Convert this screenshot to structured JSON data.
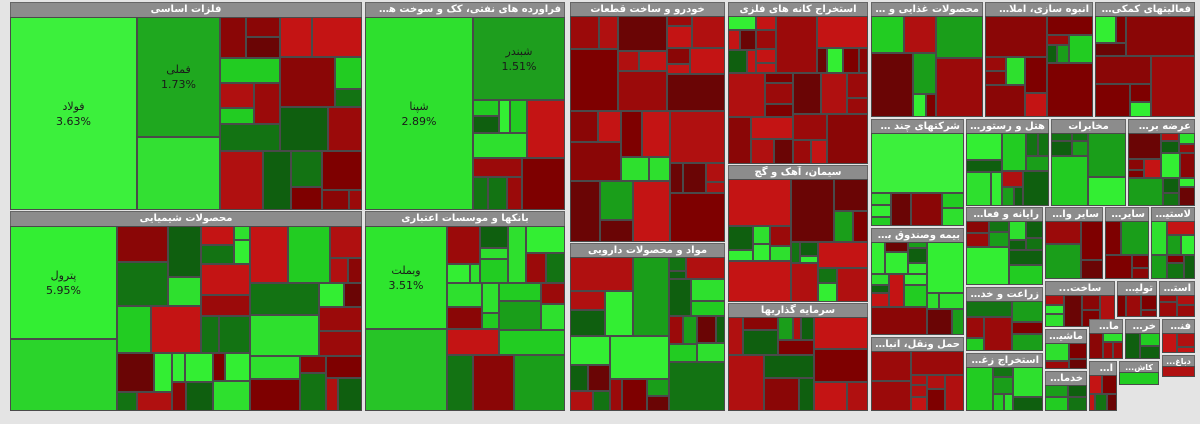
{
  "sectors": [
    {
      "title": "فلزات اساسی",
      "tiles": [
        {
          "symbol": "فولاد",
          "change": "3.63%"
        },
        {
          "symbol": "فملی",
          "change": "1.73%"
        }
      ]
    },
    {
      "title": "فراورده های نفتی، کک و سوخت هسته ای",
      "tiles": [
        {
          "symbol": "شپنا",
          "change": "2.89%"
        },
        {
          "symbol": "شبندر",
          "change": "1.51%"
        }
      ]
    },
    {
      "title": "محصولات شیمیایی",
      "tiles": [
        {
          "symbol": "پترول",
          "change": "5.95%"
        }
      ]
    },
    {
      "title": "بانکها و موسسات اعتباری",
      "tiles": [
        {
          "symbol": "وبملت",
          "change": "3.51%"
        }
      ]
    },
    {
      "title": "خودرو و ساخت قطعات",
      "tiles": []
    },
    {
      "title": "مواد و محصولات دارویی",
      "tiles": []
    },
    {
      "title": "استخراج کانه های فلزی",
      "tiles": []
    },
    {
      "title": "سیمان، آهک و گچ",
      "tiles": []
    },
    {
      "title": "سرمایه گذاریها",
      "tiles": []
    },
    {
      "title": "محصولات غذایی و آشام...",
      "tiles": []
    },
    {
      "title": "انبوه سازی، املاک و م...",
      "tiles": []
    },
    {
      "title": "فعالیتهای کمکی به ...",
      "tiles": []
    },
    {
      "title": "شرکتهای چند رشته ...",
      "tiles": []
    },
    {
      "title": "هتل و رستوران",
      "tiles": []
    },
    {
      "title": "مخابرات",
      "tiles": []
    },
    {
      "title": "عرضه برق...",
      "tiles": []
    },
    {
      "title": "رایانه و فعالیت...",
      "tiles": []
    },
    {
      "title": "سایر واسـ...",
      "tiles": []
    },
    {
      "title": "سایر م...",
      "tiles": []
    },
    {
      "title": "لاستیک...",
      "tiles": []
    },
    {
      "title": "بیمه وصندوق بازنش...",
      "tiles": []
    },
    {
      "title": "زراعت و خدمات",
      "tiles": []
    },
    {
      "title": "ساخت...",
      "tiles": []
    },
    {
      "title": "تولید مح...",
      "tiles": []
    },
    {
      "title": "استخراج...",
      "tiles": []
    },
    {
      "title": "حمل ونقل، انبار...",
      "tiles": []
    },
    {
      "title": "استخراج زغال...",
      "tiles": []
    },
    {
      "title": "ماشین...",
      "tiles": []
    },
    {
      "title": "ماش...",
      "tiles": []
    },
    {
      "title": "خرده...",
      "tiles": []
    },
    {
      "title": "فنی...",
      "tiles": []
    },
    {
      "title": "خدمات...",
      "tiles": []
    },
    {
      "title": "اطلا...",
      "tiles": []
    },
    {
      "title": "کاش...",
      "tiles": []
    },
    {
      "title": "دباغ...",
      "tiles": []
    }
  ]
}
